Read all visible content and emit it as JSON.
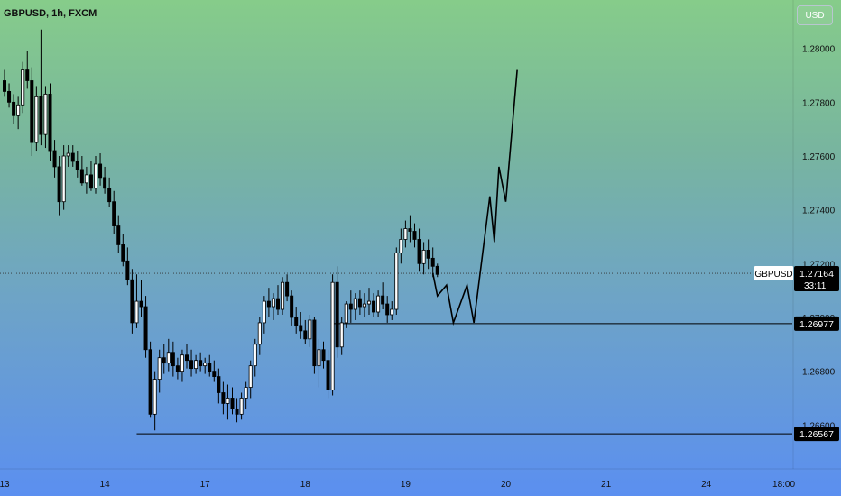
{
  "header": {
    "symbol_title": "GBPUSD, 1h, FXCM",
    "currency_button": "USD"
  },
  "chart_data": {
    "type": "candlestick",
    "symbol": "GBPUSD",
    "timeframe": "1h",
    "source": "FXCM",
    "ylim": [
      1.2644,
      1.2818
    ],
    "y_ticks": [
      "1.28000",
      "1.27800",
      "1.27600",
      "1.27400",
      "1.27200",
      "1.27000",
      "1.26800",
      "1.26600"
    ],
    "x_ticks": [
      "13",
      "14",
      "17",
      "18",
      "19",
      "20",
      "21",
      "24",
      "18:00"
    ],
    "x_tick_index": [
      0,
      22,
      44,
      66,
      88,
      110,
      132,
      154,
      171
    ],
    "candles": [
      [
        1.2788,
        1.2792,
        1.2782,
        1.2784
      ],
      [
        1.2784,
        1.2787,
        1.2778,
        1.278
      ],
      [
        1.278,
        1.2783,
        1.2772,
        1.2775
      ],
      [
        1.2775,
        1.2782,
        1.277,
        1.2779
      ],
      [
        1.2779,
        1.2795,
        1.2776,
        1.2792
      ],
      [
        1.2792,
        1.2799,
        1.2785,
        1.2788
      ],
      [
        1.2788,
        1.2793,
        1.276,
        1.2765
      ],
      [
        1.2765,
        1.2786,
        1.2762,
        1.2782
      ],
      [
        1.2782,
        1.2807,
        1.2764,
        1.2768
      ],
      [
        1.2768,
        1.2786,
        1.2763,
        1.2783
      ],
      [
        1.2783,
        1.2787,
        1.2758,
        1.2762
      ],
      [
        1.2762,
        1.2766,
        1.2752,
        1.2756
      ],
      [
        1.2756,
        1.276,
        1.2738,
        1.2743
      ],
      [
        1.2743,
        1.2764,
        1.274,
        1.276
      ],
      [
        1.276,
        1.2764,
        1.2756,
        1.2761
      ],
      [
        1.2761,
        1.2764,
        1.2756,
        1.2758
      ],
      [
        1.2758,
        1.2762,
        1.2752,
        1.2755
      ],
      [
        1.2755,
        1.276,
        1.2749,
        1.275
      ],
      [
        1.275,
        1.2756,
        1.2746,
        1.2753
      ],
      [
        1.2753,
        1.2758,
        1.2747,
        1.2748
      ],
      [
        1.2748,
        1.276,
        1.2746,
        1.2757
      ],
      [
        1.2757,
        1.2761,
        1.2749,
        1.2752
      ],
      [
        1.2752,
        1.2756,
        1.2746,
        1.2748
      ],
      [
        1.2748,
        1.2752,
        1.2741,
        1.2743
      ],
      [
        1.2743,
        1.2747,
        1.2731,
        1.2734
      ],
      [
        1.2734,
        1.2738,
        1.2724,
        1.2727
      ],
      [
        1.2727,
        1.2731,
        1.2719,
        1.2721
      ],
      [
        1.2721,
        1.2726,
        1.2712,
        1.2714
      ],
      [
        1.2714,
        1.2718,
        1.2694,
        1.2698
      ],
      [
        1.2698,
        1.2716,
        1.2696,
        1.2706
      ],
      [
        1.2706,
        1.2714,
        1.27,
        1.2704
      ],
      [
        1.2704,
        1.2708,
        1.2685,
        1.2688
      ],
      [
        1.2688,
        1.2691,
        1.2663,
        1.2664
      ],
      [
        1.2664,
        1.268,
        1.2658,
        1.2677
      ],
      [
        1.2677,
        1.2688,
        1.2672,
        1.2685
      ],
      [
        1.2685,
        1.269,
        1.2679,
        1.2683
      ],
      [
        1.2683,
        1.2692,
        1.268,
        1.2687
      ],
      [
        1.2687,
        1.2691,
        1.2678,
        1.2682
      ],
      [
        1.2682,
        1.2685,
        1.2677,
        1.268
      ],
      [
        1.268,
        1.2688,
        1.2676,
        1.2686
      ],
      [
        1.2686,
        1.269,
        1.2681,
        1.2684
      ],
      [
        1.2684,
        1.2688,
        1.2678,
        1.2681
      ],
      [
        1.2681,
        1.2686,
        1.2679,
        1.2684
      ],
      [
        1.2684,
        1.2687,
        1.268,
        1.2682
      ],
      [
        1.2682,
        1.2685,
        1.2679,
        1.2683
      ],
      [
        1.2683,
        1.2686,
        1.2678,
        1.268
      ],
      [
        1.268,
        1.2684,
        1.2676,
        1.2678
      ],
      [
        1.2678,
        1.2681,
        1.2668,
        1.2672
      ],
      [
        1.2672,
        1.2676,
        1.2664,
        1.2668
      ],
      [
        1.2668,
        1.2675,
        1.2662,
        1.267
      ],
      [
        1.267,
        1.2674,
        1.2664,
        1.2666
      ],
      [
        1.2666,
        1.267,
        1.2661,
        1.2664
      ],
      [
        1.2664,
        1.2672,
        1.2662,
        1.267
      ],
      [
        1.267,
        1.2676,
        1.2666,
        1.2674
      ],
      [
        1.2674,
        1.2684,
        1.267,
        1.2682
      ],
      [
        1.2682,
        1.2692,
        1.2678,
        1.269
      ],
      [
        1.269,
        1.27,
        1.2686,
        1.2698
      ],
      [
        1.2698,
        1.2708,
        1.2694,
        1.2706
      ],
      [
        1.2706,
        1.2711,
        1.27,
        1.2704
      ],
      [
        1.2704,
        1.2709,
        1.2699,
        1.2707
      ],
      [
        1.2707,
        1.2712,
        1.2701,
        1.2703
      ],
      [
        1.2703,
        1.2715,
        1.2701,
        1.2713
      ],
      [
        1.2713,
        1.2716,
        1.2706,
        1.2708
      ],
      [
        1.2708,
        1.271,
        1.2697,
        1.27
      ],
      [
        1.27,
        1.2704,
        1.2694,
        1.2697
      ],
      [
        1.2697,
        1.2702,
        1.2692,
        1.2695
      ],
      [
        1.2695,
        1.2699,
        1.269,
        1.2692
      ],
      [
        1.2692,
        1.2701,
        1.2689,
        1.2699
      ],
      [
        1.2699,
        1.27,
        1.2679,
        1.2682
      ],
      [
        1.2682,
        1.2692,
        1.2674,
        1.2688
      ],
      [
        1.2688,
        1.2691,
        1.2681,
        1.2684
      ],
      [
        1.2684,
        1.2688,
        1.267,
        1.2673
      ],
      [
        1.2673,
        1.2716,
        1.2671,
        1.2713
      ],
      [
        1.2713,
        1.2719,
        1.2685,
        1.2689
      ],
      [
        1.2689,
        1.27,
        1.2686,
        1.2698
      ],
      [
        1.2698,
        1.2706,
        1.2696,
        1.2705
      ],
      [
        1.2705,
        1.271,
        1.2698,
        1.2703
      ],
      [
        1.2703,
        1.2709,
        1.2699,
        1.2707
      ],
      [
        1.2707,
        1.271,
        1.2701,
        1.2704
      ],
      [
        1.2704,
        1.2709,
        1.27,
        1.2705
      ],
      [
        1.2705,
        1.2711,
        1.2701,
        1.2706
      ],
      [
        1.2706,
        1.2709,
        1.27,
        1.2702
      ],
      [
        1.2702,
        1.271,
        1.27,
        1.2708
      ],
      [
        1.2708,
        1.2713,
        1.2703,
        1.2705
      ],
      [
        1.2705,
        1.2708,
        1.2698,
        1.2701
      ],
      [
        1.2701,
        1.2706,
        1.2699,
        1.2703
      ],
      [
        1.2703,
        1.2726,
        1.2701,
        1.2724
      ],
      [
        1.2724,
        1.2733,
        1.272,
        1.2729
      ],
      [
        1.2729,
        1.2736,
        1.2726,
        1.2733
      ],
      [
        1.2733,
        1.2738,
        1.2728,
        1.2732
      ],
      [
        1.2732,
        1.2735,
        1.2726,
        1.2729
      ],
      [
        1.2729,
        1.2733,
        1.2717,
        1.272
      ],
      [
        1.272,
        1.2728,
        1.2716,
        1.2725
      ],
      [
        1.2725,
        1.2729,
        1.2718,
        1.2722
      ],
      [
        1.2722,
        1.2726,
        1.2715,
        1.2719
      ],
      [
        1.2719,
        1.272,
        1.2715,
        1.2716
      ]
    ],
    "projection_path": [
      [
        94,
        1.27164
      ],
      [
        95,
        1.2708
      ],
      [
        97,
        1.2712
      ],
      [
        98.5,
        1.2698
      ],
      [
        101.5,
        1.2712
      ],
      [
        103,
        1.2698
      ],
      [
        106.5,
        1.2745
      ],
      [
        107.5,
        1.2728
      ],
      [
        108.5,
        1.2756
      ],
      [
        110,
        1.2743
      ],
      [
        112.5,
        1.2792
      ]
    ],
    "levels": [
      {
        "price": 1.26977,
        "label": "1.26977",
        "start_index": 72
      },
      {
        "price": 1.26567,
        "label": "1.26567",
        "start_index": 29
      }
    ],
    "current_price": {
      "symbol": "GBPUSD",
      "price": "1.27164",
      "value": 1.27164,
      "countdown": "33:11"
    }
  }
}
